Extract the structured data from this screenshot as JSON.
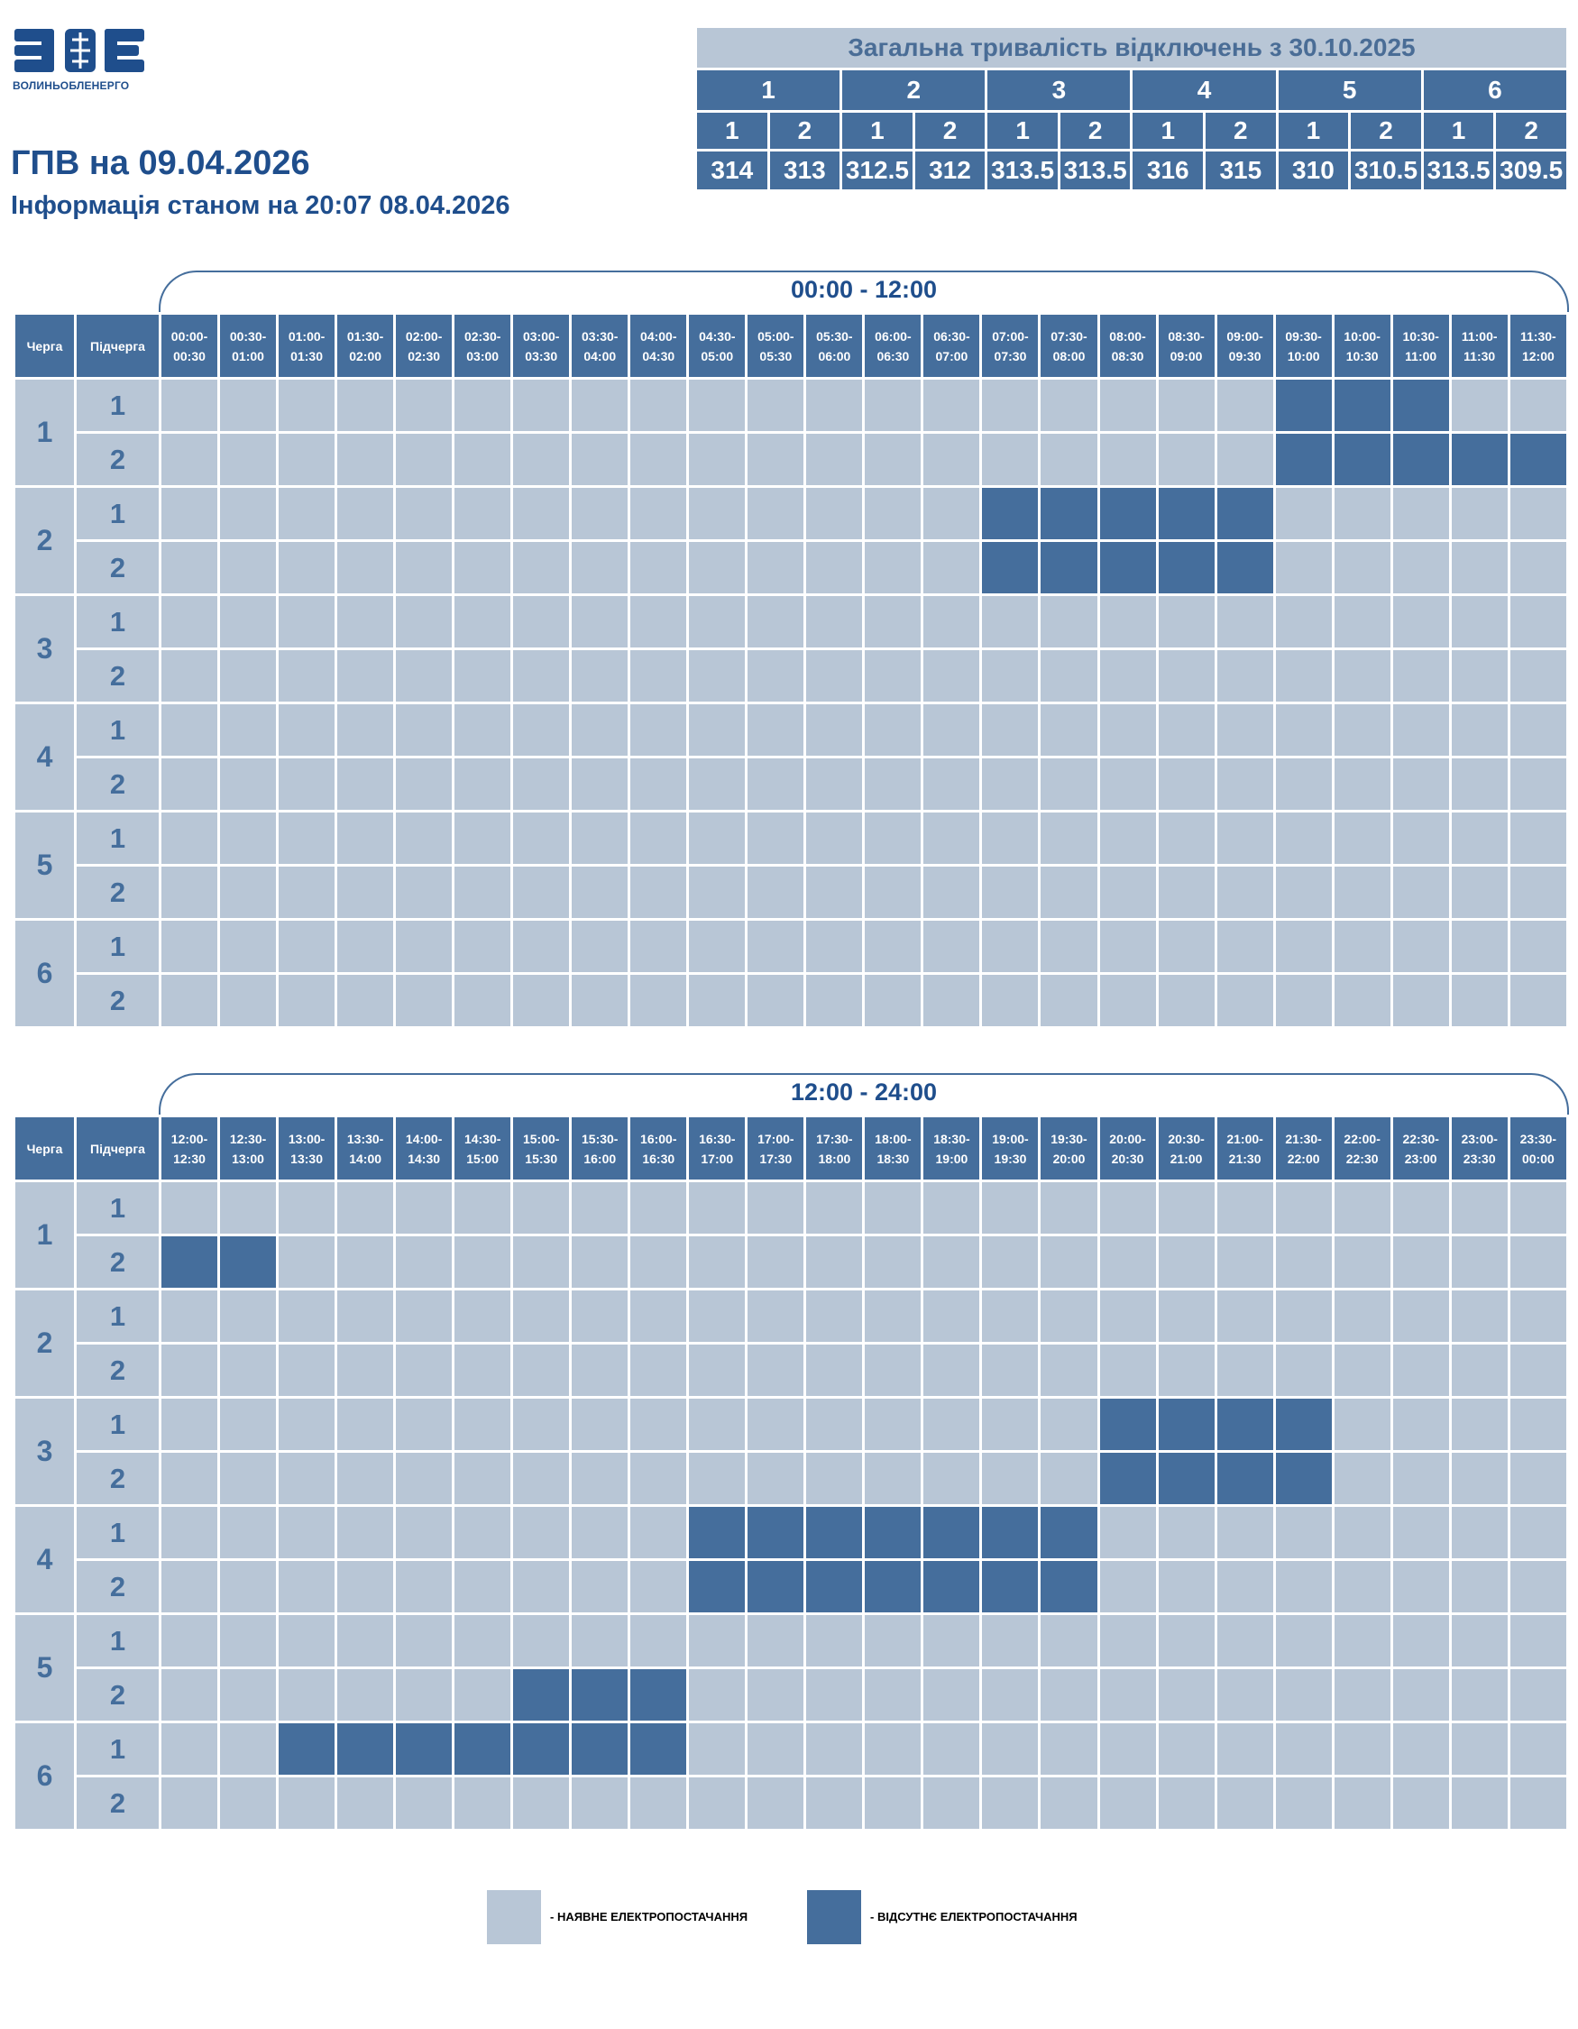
{
  "logo": {
    "letters": "ВОЕ",
    "subtitle": "ВОЛИНЬОБЛЕНЕРГО",
    "color": "#1f4e8c"
  },
  "title": "ГПВ на 09.04.2026",
  "subtitle": "Інформація станом на 20:07 08.04.2026",
  "summary": {
    "heading": "Загальна тривалість відключень з 30.10.2025",
    "queues": [
      "1",
      "2",
      "3",
      "4",
      "5",
      "6"
    ],
    "subqueues": [
      "1",
      "2",
      "1",
      "2",
      "1",
      "2",
      "1",
      "2",
      "1",
      "2",
      "1",
      "2"
    ],
    "values": [
      "314",
      "313",
      "312.5",
      "312",
      "313.5",
      "313.5",
      "316",
      "315",
      "310",
      "310.5",
      "313.5",
      "309.5"
    ]
  },
  "headers": {
    "queue": "Черга",
    "subqueue": "Підчерга"
  },
  "periods": [
    {
      "label": "00:00 - 12:00",
      "slots": [
        "00:00-00:30",
        "00:30-01:00",
        "01:00-01:30",
        "01:30-02:00",
        "02:00-02:30",
        "02:30-03:00",
        "03:00-03:30",
        "03:30-04:00",
        "04:00-04:30",
        "04:30-05:00",
        "05:00-05:30",
        "05:30-06:00",
        "06:00-06:30",
        "06:30-07:00",
        "07:00-07:30",
        "07:30-08:00",
        "08:00-08:30",
        "08:30-09:00",
        "09:00-09:30",
        "09:30-10:00",
        "10:00-10:30",
        "10:30-11:00",
        "11:00-11:30",
        "11:30-12:00"
      ],
      "rows": [
        {
          "queue": "1",
          "subqueue": "1",
          "off": [
            19,
            20,
            21
          ]
        },
        {
          "queue": "1",
          "subqueue": "2",
          "off": [
            19,
            20,
            21,
            22,
            23
          ]
        },
        {
          "queue": "2",
          "subqueue": "1",
          "off": [
            14,
            15,
            16,
            17,
            18
          ]
        },
        {
          "queue": "2",
          "subqueue": "2",
          "off": [
            14,
            15,
            16,
            17,
            18
          ]
        },
        {
          "queue": "3",
          "subqueue": "1",
          "off": []
        },
        {
          "queue": "3",
          "subqueue": "2",
          "off": []
        },
        {
          "queue": "4",
          "subqueue": "1",
          "off": []
        },
        {
          "queue": "4",
          "subqueue": "2",
          "off": []
        },
        {
          "queue": "5",
          "subqueue": "1",
          "off": []
        },
        {
          "queue": "5",
          "subqueue": "2",
          "off": []
        },
        {
          "queue": "6",
          "subqueue": "1",
          "off": []
        },
        {
          "queue": "6",
          "subqueue": "2",
          "off": []
        }
      ]
    },
    {
      "label": "12:00 - 24:00",
      "slots": [
        "12:00-12:30",
        "12:30-13:00",
        "13:00-13:30",
        "13:30-14:00",
        "14:00-14:30",
        "14:30-15:00",
        "15:00-15:30",
        "15:30-16:00",
        "16:00-16:30",
        "16:30-17:00",
        "17:00-17:30",
        "17:30-18:00",
        "18:00-18:30",
        "18:30-19:00",
        "19:00-19:30",
        "19:30-20:00",
        "20:00-20:30",
        "20:30-21:00",
        "21:00-21:30",
        "21:30-22:00",
        "22:00-22:30",
        "22:30-23:00",
        "23:00-23:30",
        "23:30-00:00"
      ],
      "rows": [
        {
          "queue": "1",
          "subqueue": "1",
          "off": []
        },
        {
          "queue": "1",
          "subqueue": "2",
          "off": [
            0,
            1
          ]
        },
        {
          "queue": "2",
          "subqueue": "1",
          "off": []
        },
        {
          "queue": "2",
          "subqueue": "2",
          "off": []
        },
        {
          "queue": "3",
          "subqueue": "1",
          "off": [
            16,
            17,
            18,
            19
          ]
        },
        {
          "queue": "3",
          "subqueue": "2",
          "off": [
            16,
            17,
            18,
            19
          ]
        },
        {
          "queue": "4",
          "subqueue": "1",
          "off": [
            9,
            10,
            11,
            12,
            13,
            14,
            15
          ]
        },
        {
          "queue": "4",
          "subqueue": "2",
          "off": [
            9,
            10,
            11,
            12,
            13,
            14,
            15
          ]
        },
        {
          "queue": "5",
          "subqueue": "1",
          "off": []
        },
        {
          "queue": "5",
          "subqueue": "2",
          "off": [
            6,
            7,
            8
          ]
        },
        {
          "queue": "6",
          "subqueue": "1",
          "off": [
            2,
            3,
            4,
            5,
            6,
            7,
            8
          ]
        },
        {
          "queue": "6",
          "subqueue": "2",
          "off": []
        }
      ]
    }
  ],
  "legend": {
    "available": "- НАЯВНЕ ЕЛЕКТРОПОСТАЧАННЯ",
    "absent": "- ВІДСУТНЄ ЕЛЕКТРОПОСТАЧАННЯ",
    "available_color": "#b8c6d6",
    "absent_color": "#456e9c"
  }
}
